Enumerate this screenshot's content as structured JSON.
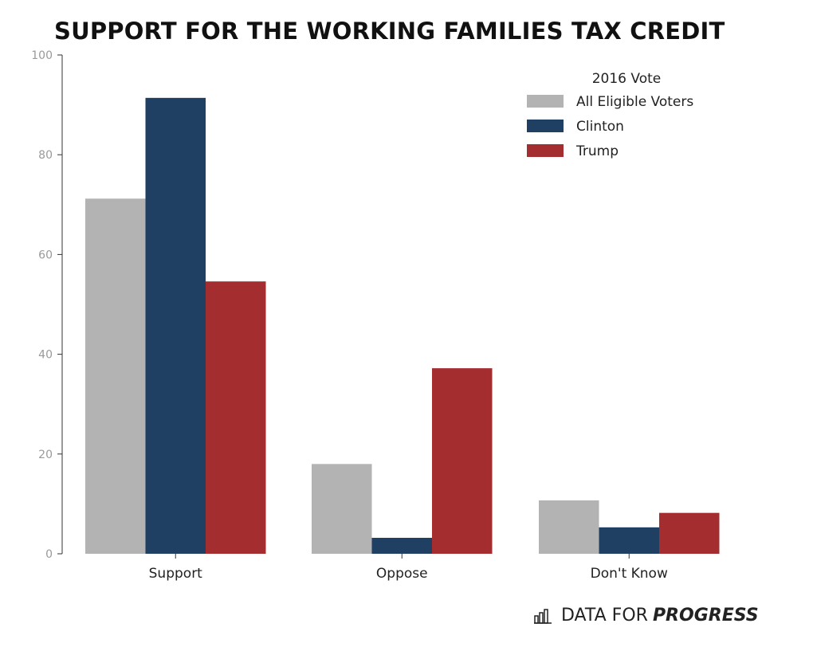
{
  "chart_data": {
    "type": "bar",
    "title": "SUPPORT FOR THE WORKING FAMILIES TAX CREDIT",
    "xlabel": "",
    "ylabel": "",
    "ylim": [
      0,
      100
    ],
    "yticks": [
      "0",
      "20",
      "40",
      "60",
      "80",
      "100"
    ],
    "grid": false,
    "categories": [
      "Support",
      "Oppose",
      "Don't Know"
    ],
    "legend": {
      "title": "2016 Vote",
      "placement": "top-right"
    },
    "series": [
      {
        "name": "All Eligible Voters",
        "color": "#b3b3b3",
        "values": [
          71.2,
          18,
          10.7
        ]
      },
      {
        "name": "Clinton",
        "color": "#1f3f63",
        "values": [
          91.4,
          3.2,
          5.3
        ]
      },
      {
        "name": "Trump",
        "color": "#a32d2f",
        "values": [
          54.6,
          37.2,
          8.2
        ]
      }
    ]
  },
  "branding": {
    "prefix": "DATA FOR",
    "strong": "PROGRESS",
    "icon": "bar-chart-icon"
  }
}
